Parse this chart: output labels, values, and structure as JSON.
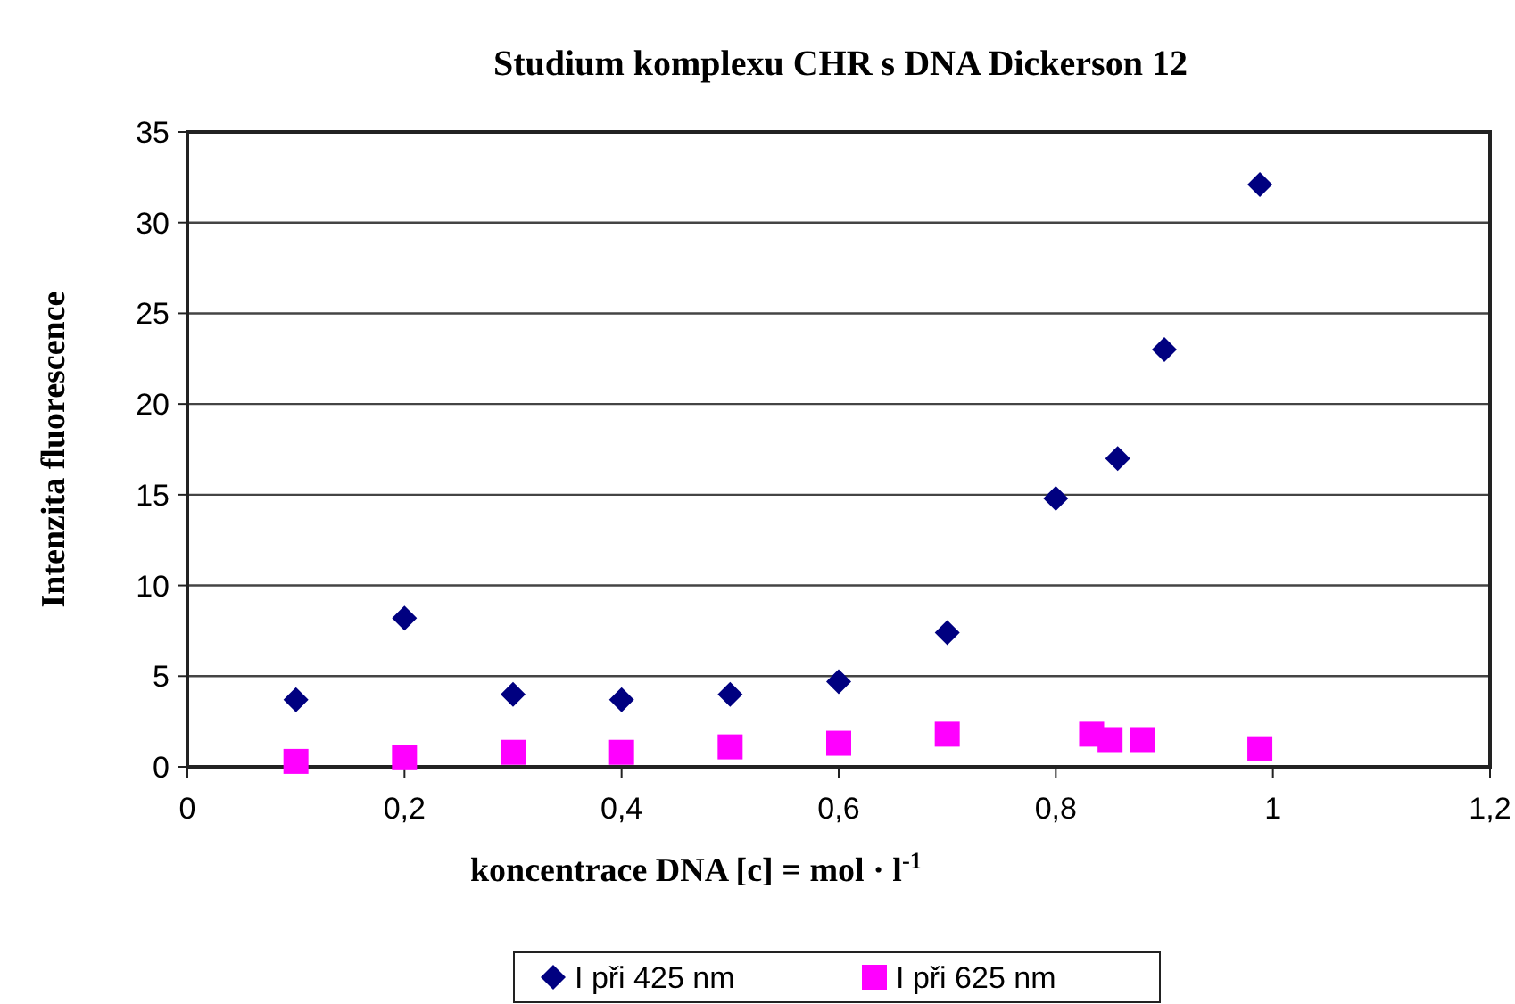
{
  "chart_data": {
    "type": "scatter",
    "title": "Studium komplexu CHR s DNA Dickerson 12",
    "xlabel": "koncentrace DNA [c] = mol · l$^{-1}$",
    "ylabel": "Intenzita fluorescence",
    "xlim": [
      0,
      1.2
    ],
    "xticks": [
      {
        "value": 0,
        "label": "0"
      },
      {
        "value": 0.2,
        "label": "0,2"
      },
      {
        "value": 0.4,
        "label": "0,4"
      },
      {
        "value": 0.6,
        "label": "0,6"
      },
      {
        "value": 0.8,
        "label": "0,8"
      },
      {
        "value": 1,
        "label": "1"
      },
      {
        "value": 1.2,
        "label": "1,2"
      }
    ],
    "ylim": [
      0,
      35
    ],
    "yticks": [
      0,
      5,
      10,
      15,
      20,
      25,
      30,
      35
    ],
    "grid": "y",
    "legend": "bottom",
    "series": [
      {
        "name": "I při 425 nm",
        "color": "#000080",
        "marker": "diamond",
        "x": [
          0.1,
          0.2,
          0.3,
          0.4,
          0.5,
          0.6,
          0.7,
          0.8,
          0.857,
          0.9,
          0.988
        ],
        "values": [
          3.7,
          8.2,
          4.0,
          3.7,
          4.0,
          4.7,
          7.4,
          14.8,
          17.0,
          23.0,
          32.1
        ]
      },
      {
        "name": "I při 625 nm",
        "color": "#ff00ff",
        "marker": "square",
        "x": [
          0.1,
          0.2,
          0.3,
          0.4,
          0.5,
          0.6,
          0.7,
          0.833,
          0.85,
          0.88,
          0.988
        ],
        "values": [
          0.3,
          0.5,
          0.8,
          0.8,
          1.1,
          1.3,
          1.8,
          1.8,
          1.5,
          1.5,
          1.0
        ]
      }
    ]
  }
}
